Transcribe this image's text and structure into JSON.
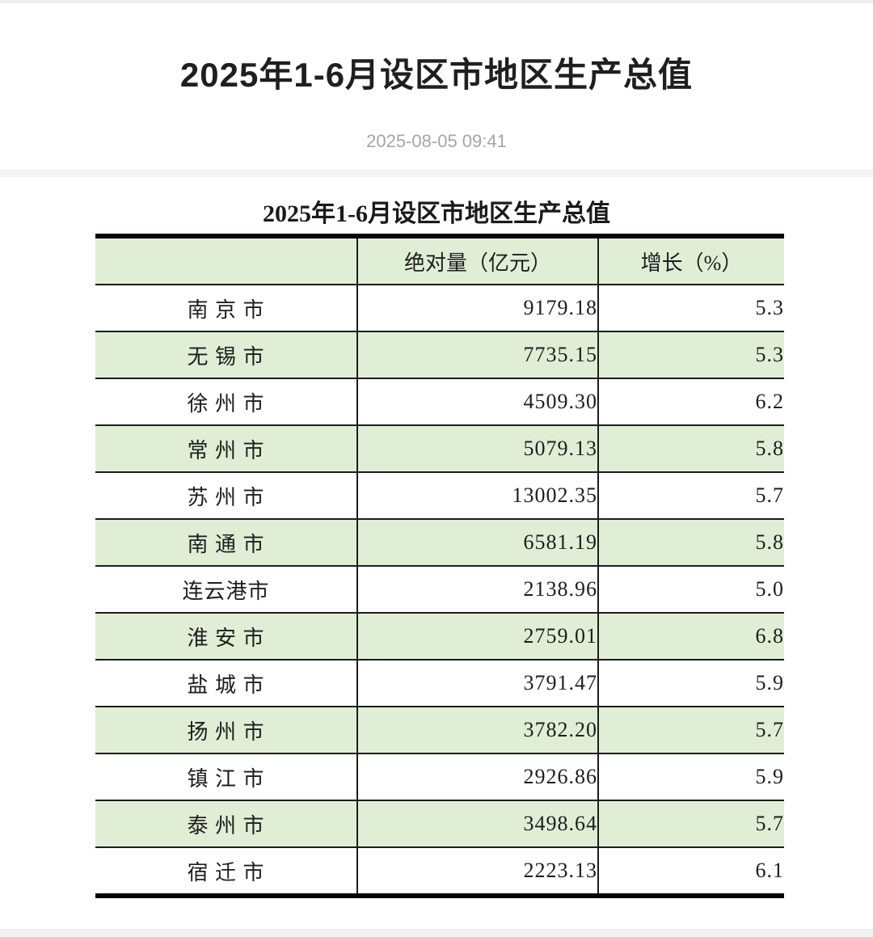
{
  "page": {
    "title": "2025年1-6月设区市地区生产总值",
    "published": "2025-08-05 09:41"
  },
  "table": {
    "title": "2025年1-6月设区市地区生产总值",
    "columns": {
      "region": "",
      "absolute": "绝对量（亿元）",
      "growth": "增长（%）"
    },
    "rows": [
      {
        "city": "南 京 市",
        "absolute": "9179.18",
        "growth": "5.3"
      },
      {
        "city": "无 锡 市",
        "absolute": "7735.15",
        "growth": "5.3"
      },
      {
        "city": "徐 州 市",
        "absolute": "4509.30",
        "growth": "6.2"
      },
      {
        "city": "常 州 市",
        "absolute": "5079.13",
        "growth": "5.8"
      },
      {
        "city": "苏 州 市",
        "absolute": "13002.35",
        "growth": "5.7"
      },
      {
        "city": "南 通 市",
        "absolute": "6581.19",
        "growth": "5.8"
      },
      {
        "city": "连云港市",
        "absolute": "2138.96",
        "growth": "5.0"
      },
      {
        "city": "淮 安 市",
        "absolute": "2759.01",
        "growth": "6.8"
      },
      {
        "city": "盐 城 市",
        "absolute": "3791.47",
        "growth": "5.9"
      },
      {
        "city": "扬 州 市",
        "absolute": "3782.20",
        "growth": "5.7"
      },
      {
        "city": "镇 江 市",
        "absolute": "2926.86",
        "growth": "5.9"
      },
      {
        "city": "泰 州 市",
        "absolute": "3498.64",
        "growth": "5.7"
      },
      {
        "city": "宿 迁 市",
        "absolute": "2223.13",
        "growth": "6.1"
      }
    ]
  },
  "colors": {
    "row_alt_green": "#e0eed6",
    "table_border_dark": "#1c1c1c",
    "date_gray": "#a6a6a6"
  }
}
